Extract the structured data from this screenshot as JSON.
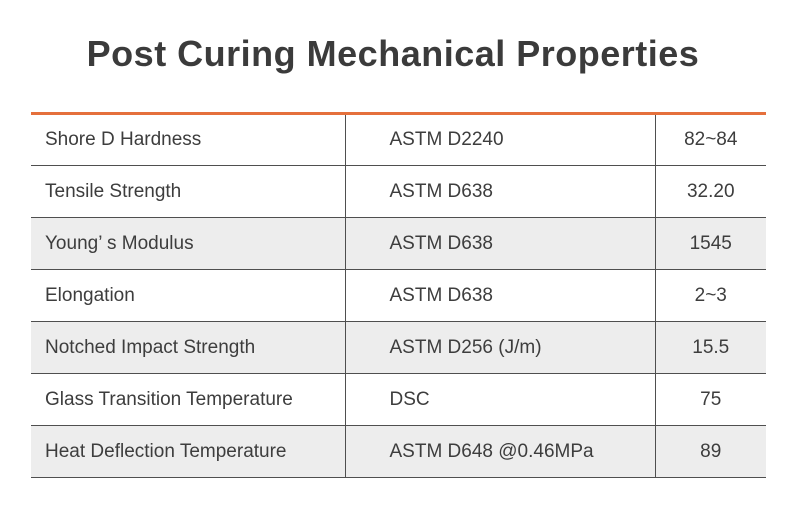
{
  "page": {
    "title": "Post Curing Mechanical Properties"
  },
  "colors": {
    "accent": "#e5703c",
    "line": "#4f4f4f",
    "altbg": "#ededed",
    "text": "#3d3d3d"
  },
  "table": {
    "columns": [
      "property",
      "standard",
      "value"
    ],
    "rows": [
      {
        "property": "Shore D Hardness",
        "standard": "ASTM D2240",
        "value": "82~84"
      },
      {
        "property": "Tensile Strength",
        "standard": "ASTM D638",
        "value": "32.20"
      },
      {
        "property": "Young’ s Modulus",
        "standard": "ASTM D638",
        "value": "1545"
      },
      {
        "property": "Elongation",
        "standard": "ASTM D638",
        "value": "2~3"
      },
      {
        "property": "Notched Impact Strength",
        "standard": "ASTM D256 (J/m)",
        "value": "15.5"
      },
      {
        "property": "Glass Transition Temperature",
        "standard": "DSC",
        "value": "75"
      },
      {
        "property": "Heat Deflection Temperature",
        "standard": "ASTM D648 @0.46MPa",
        "value": "89"
      }
    ]
  }
}
